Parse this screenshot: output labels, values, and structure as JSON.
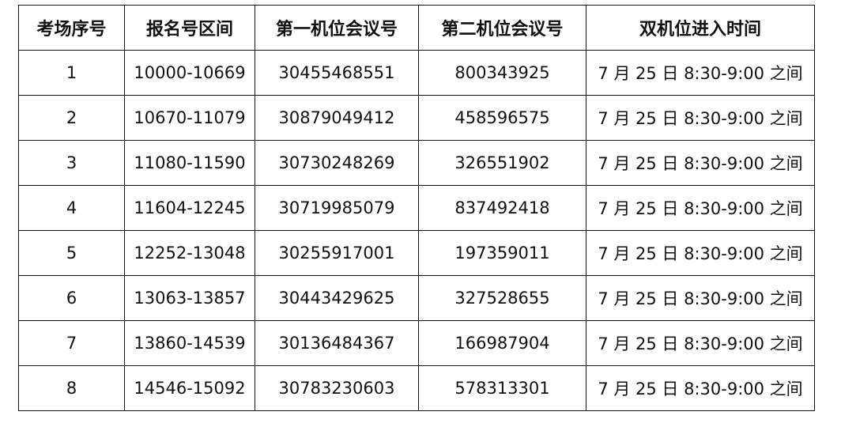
{
  "table": {
    "headers": [
      "考场序号",
      "报名号区间",
      "第一机位会议号",
      "第二机位会议号",
      "双机位进入时间"
    ],
    "rows": [
      [
        "1",
        "10000-10669",
        "30455468551",
        "800343925",
        "7 月 25 日 8:30-9:00 之间"
      ],
      [
        "2",
        "10670-11079",
        "30879049412",
        "458596575",
        "7 月 25 日 8:30-9:00 之间"
      ],
      [
        "3",
        "11080-11590",
        "30730248269",
        "326551902",
        "7 月 25 日 8:30-9:00 之间"
      ],
      [
        "4",
        "11604-12245",
        "30719985079",
        "837492418",
        "7 月 25 日 8:30-9:00 之间"
      ],
      [
        "5",
        "12252-13048",
        "30255917001",
        "197359011",
        "7 月 25 日 8:30-9:00 之间"
      ],
      [
        "6",
        "13063-13857",
        "30443429625",
        "327528655",
        "7 月 25 日 8:30-9:00 之间"
      ],
      [
        "7",
        "13860-14539",
        "30136484367",
        "166987904",
        "7 月 25 日 8:30-9:00 之间"
      ],
      [
        "8",
        "14546-15092",
        "30783230603",
        "578313301",
        "7 月 25 日 8:30-9:00 之间"
      ]
    ]
  }
}
